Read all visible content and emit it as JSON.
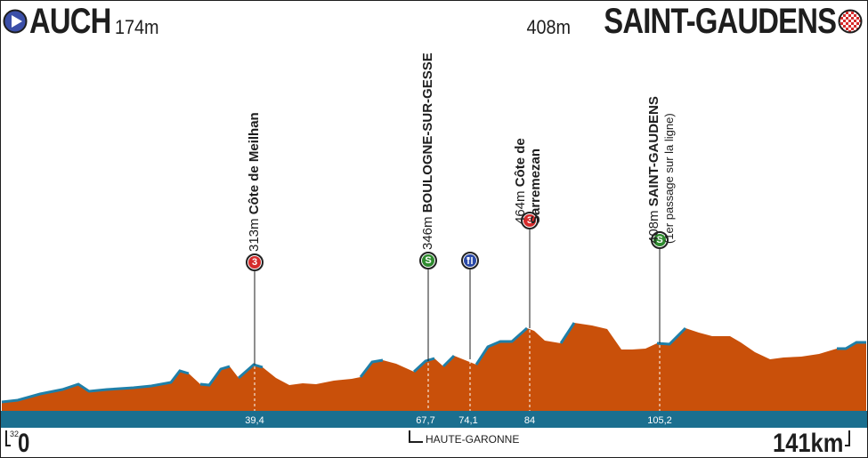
{
  "start": {
    "city": "AUCH",
    "altitude": "174m"
  },
  "finish": {
    "city": "SAINT-GAUDENS",
    "altitude": "408m"
  },
  "distance": {
    "start_label": "0",
    "end_label": "141km",
    "small_label": "32"
  },
  "department": "HAUTE-GARONNE",
  "colors": {
    "terrain": "#c9500a",
    "ridge": "#1f7fa8",
    "road": "#1b6f8f",
    "outline": "#1e1e1e"
  },
  "km_markers": [
    "39,4",
    "67,7",
    "74,1",
    "84",
    "105,2"
  ],
  "points": [
    {
      "km": "39,4",
      "altitude": "313m",
      "name": "Côte de Meilhan",
      "line2": "",
      "badge": "3",
      "badge_color": "#d52b2b",
      "type": "climb"
    },
    {
      "km": "67,7",
      "altitude": "346m",
      "name": "BOULOGNE-SUR-GESSE",
      "line2": "",
      "badge": "S",
      "badge_color": "#2e8b2e",
      "type": "sprint"
    },
    {
      "km": "74,1",
      "altitude": "",
      "name": "",
      "line2": "",
      "badge": "feed-icon",
      "badge_color": "#2b4aa8",
      "type": "feed"
    },
    {
      "km": "84",
      "altitude": "464m",
      "name": "Côte de",
      "line2": "Sarremezan",
      "badge": "3",
      "badge_color": "#d52b2b",
      "type": "climb"
    },
    {
      "km": "105,2",
      "altitude": "408m",
      "name": "SAINT-GAUDENS",
      "line2": "(1er passage sur la ligne)",
      "badge": "S",
      "badge_color": "#2e8b2e",
      "type": "sprint"
    }
  ]
}
